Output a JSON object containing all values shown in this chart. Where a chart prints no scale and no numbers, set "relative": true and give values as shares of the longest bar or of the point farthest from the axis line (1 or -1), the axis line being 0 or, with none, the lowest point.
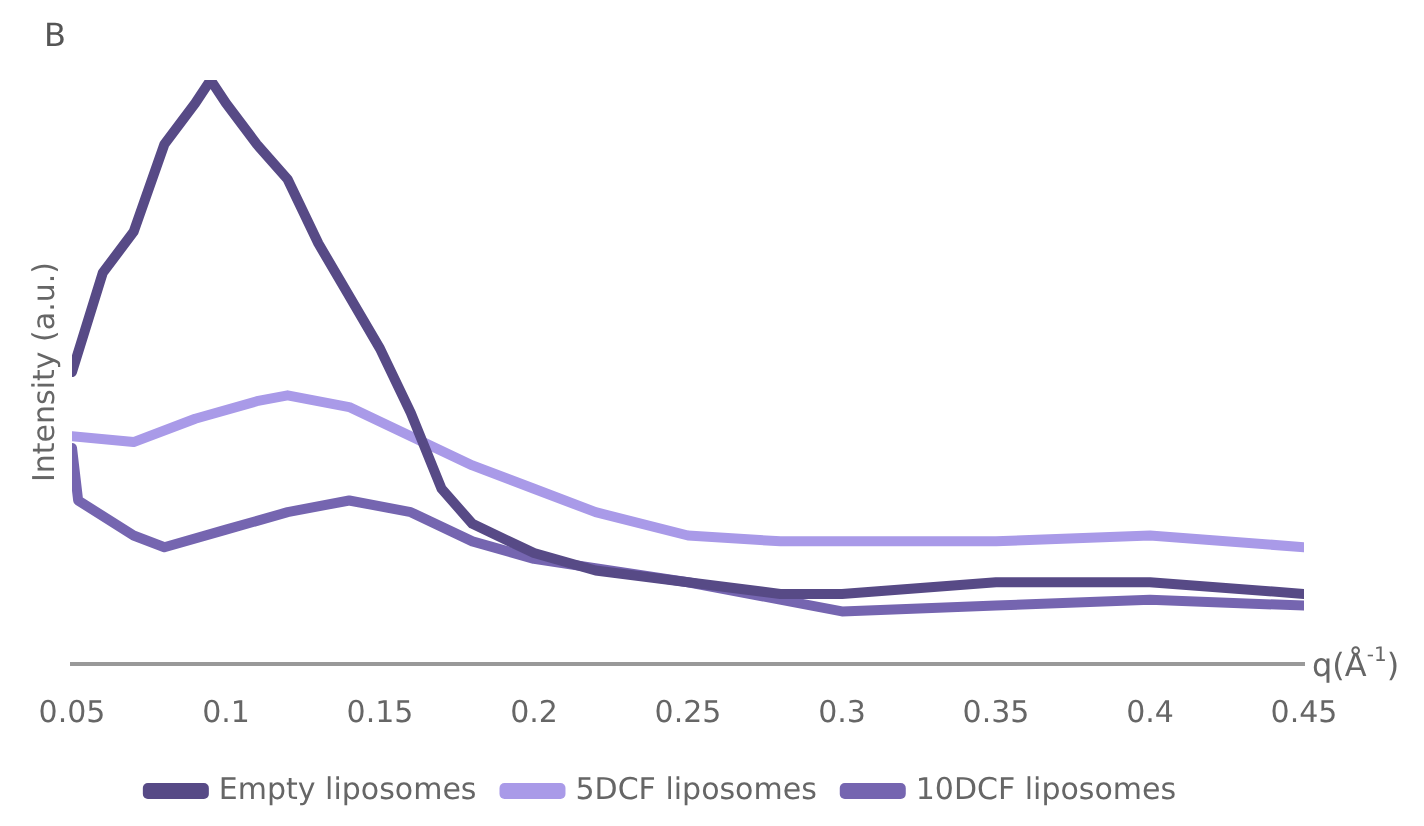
{
  "chart_data": {
    "type": "line",
    "relative": true,
    "xlabel": "q(Å$^{-1}$)",
    "ylabel": "Intensity (a.u.)",
    "annotations": [
      "B"
    ],
    "legend": "bottom",
    "marker": "none",
    "line_style": "solid",
    "grid": false,
    "xlim": [
      0.05,
      0.45
    ],
    "xticks": [
      0.05,
      0.1,
      0.15,
      0.2,
      0.25,
      0.3,
      0.35,
      0.4,
      0.45
    ],
    "series": [
      {
        "name": "Empty liposomes",
        "color": "#574a86",
        "x": [
          0.05,
          0.06,
          0.07,
          0.08,
          0.09,
          0.095,
          0.1,
          0.11,
          0.12,
          0.13,
          0.14,
          0.15,
          0.16,
          0.17,
          0.18,
          0.2,
          0.22,
          0.25,
          0.28,
          0.3,
          0.35,
          0.4,
          0.45
        ],
        "values": [
          0.5,
          0.67,
          0.74,
          0.89,
          0.96,
          1,
          0.96,
          0.89,
          0.83,
          0.72,
          0.63,
          0.54,
          0.43,
          0.3,
          0.24,
          0.19,
          0.16,
          0.14,
          0.12,
          0.12,
          0.14,
          0.14,
          0.12
        ]
      },
      {
        "name": "5DCF liposomes",
        "color": "#a99ae8",
        "x": [
          0.05,
          0.07,
          0.09,
          0.11,
          0.12,
          0.14,
          0.16,
          0.18,
          0.2,
          0.22,
          0.25,
          0.28,
          0.3,
          0.35,
          0.4,
          0.45
        ],
        "values": [
          0.39,
          0.38,
          0.42,
          0.45,
          0.46,
          0.44,
          0.39,
          0.34,
          0.3,
          0.26,
          0.22,
          0.21,
          0.21,
          0.21,
          0.22,
          0.2
        ]
      },
      {
        "name": "10DCF liposomes",
        "color": "#7565b0",
        "x": [
          0.05,
          0.052,
          0.07,
          0.08,
          0.1,
          0.12,
          0.14,
          0.16,
          0.18,
          0.2,
          0.25,
          0.3,
          0.35,
          0.4,
          0.45
        ],
        "values": [
          0.37,
          0.28,
          0.22,
          0.2,
          0.23,
          0.26,
          0.28,
          0.26,
          0.21,
          0.18,
          0.14,
          0.09,
          0.1,
          0.11,
          0.1
        ]
      }
    ]
  }
}
